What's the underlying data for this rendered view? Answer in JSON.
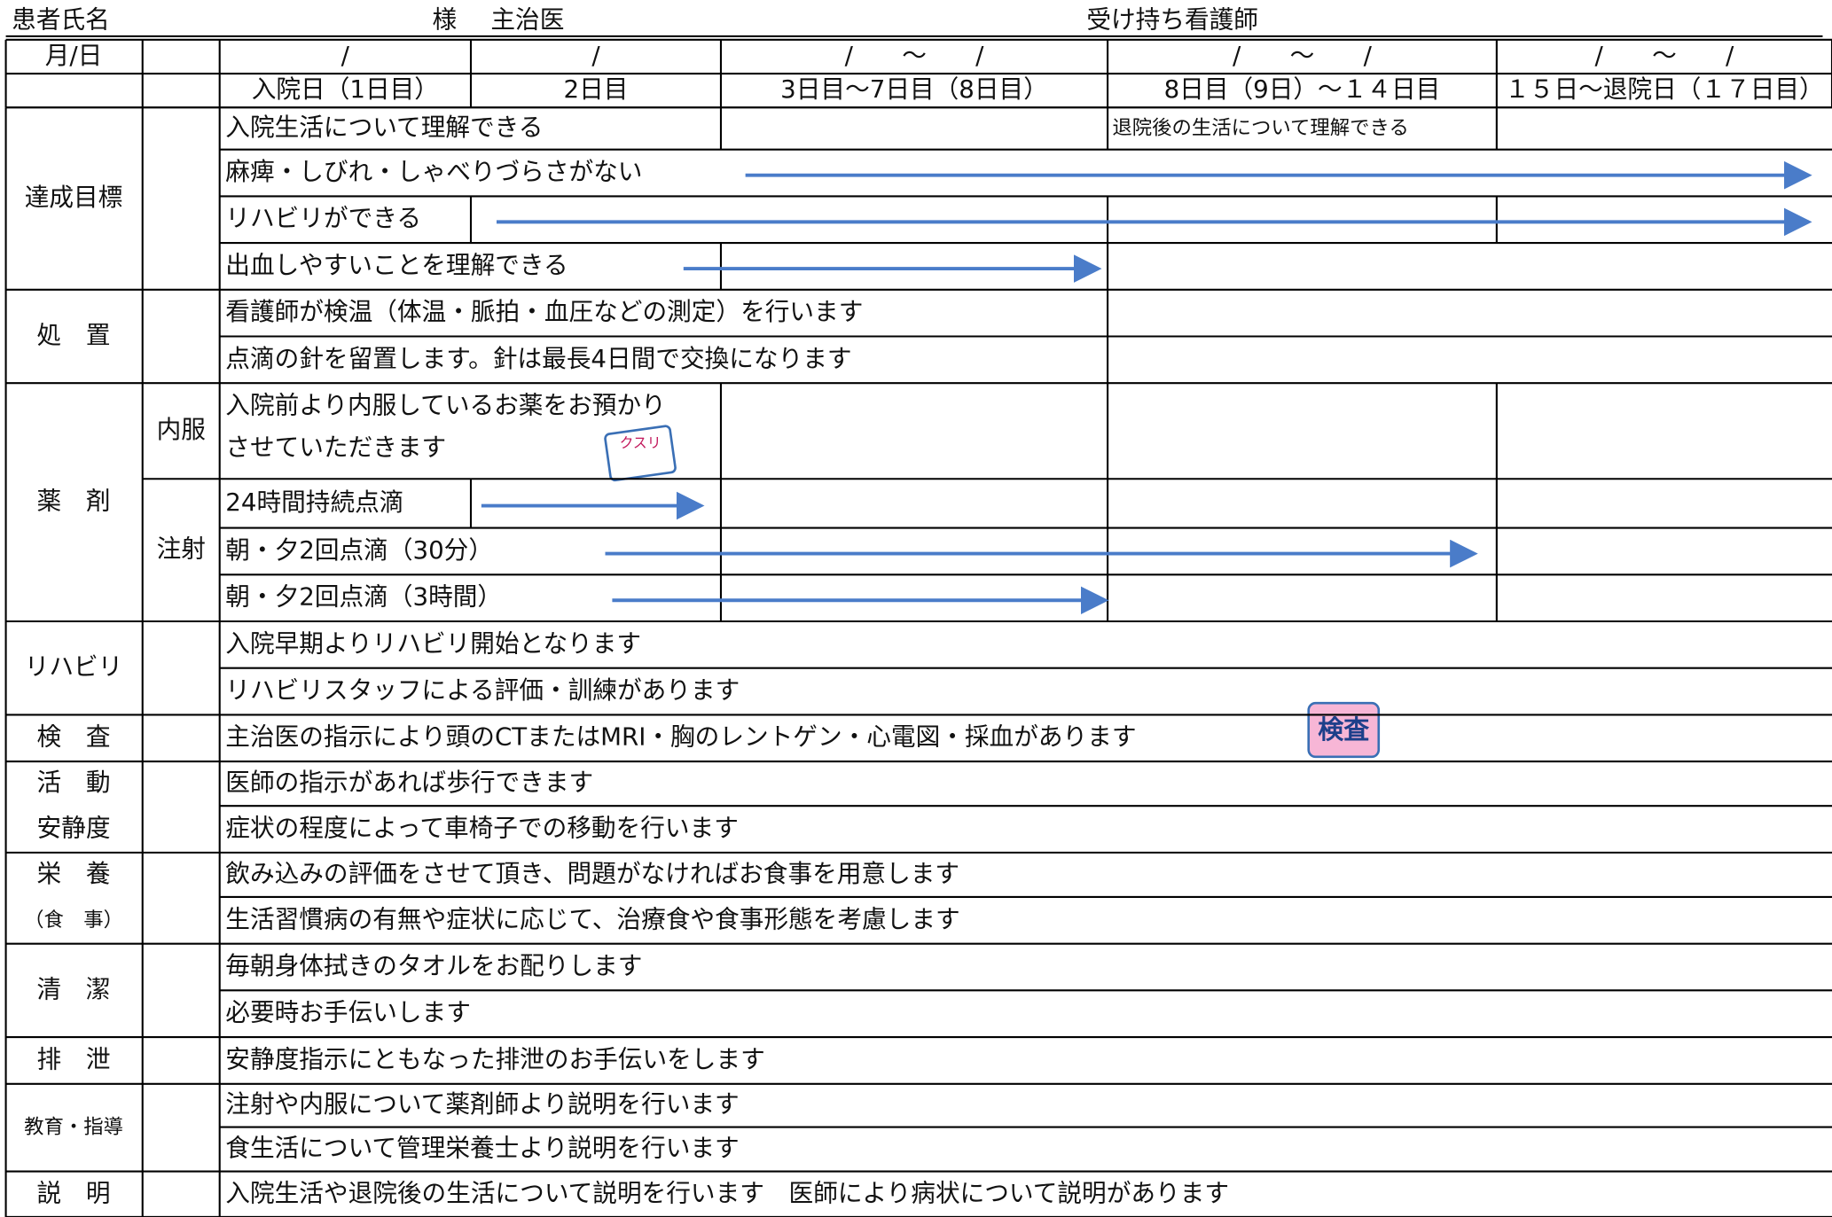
{
  "header": {
    "patient": "患者氏名",
    "sama": "様",
    "doctor": "主治医",
    "nurse": "受け持ち看護師"
  },
  "table": {
    "date_label": "月/日",
    "date_slots": [
      "/",
      "/",
      "/　　～　　/",
      "/　　～　　/",
      "/　　～　　/"
    ],
    "days": [
      "入院日（1日目）",
      "2日目",
      "3日目～7日目（8日目）",
      "8日目（9日）～１４日目",
      "１５日～退院日（１７日目）"
    ],
    "sections": [
      {
        "labels": [
          "達成目標"
        ],
        "rows": [
          [
            "入院生活について理解できる",
            "退院後の生活について理解できる"
          ],
          [
            "麻痺・しびれ・しゃべりづらさがない"
          ],
          [
            "リハビリができる"
          ],
          [
            "出血しやすいことを理解できる"
          ]
        ]
      },
      {
        "labels": [
          "処　置"
        ],
        "rows": [
          [
            "看護師が検温（体温・脈拍・血圧などの測定）を行います"
          ],
          [
            "点滴の針を留置します。針は最長4日間で交換になります"
          ]
        ]
      },
      {
        "labels": [
          "薬　剤"
        ],
        "sublabels": [
          "内服",
          "注射"
        ],
        "rows": [
          [
            "入院前より内服しているお薬をお預かり",
            "させていただきます"
          ],
          [
            "24時間持続点滴"
          ],
          [
            "朝・夕2回点滴（30分）"
          ],
          [
            "朝・夕2回点滴（3時間）"
          ]
        ]
      },
      {
        "labels": [
          "リハビリ"
        ],
        "rows": [
          [
            "入院早期よりリハビリ開始となります"
          ],
          [
            "リハビリスタッフによる評価・訓練があります"
          ]
        ]
      },
      {
        "labels": [
          "検　査"
        ],
        "rows": [
          [
            "主治医の指示により頭のCTまたはMRI・胸のレントゲン・心電図・採血があります"
          ]
        ]
      },
      {
        "labels": [
          "活　動",
          "安静度"
        ],
        "rows": [
          [
            "医師の指示があれば歩行できます"
          ],
          [
            "症状の程度によって車椅子での移動を行います"
          ]
        ]
      },
      {
        "labels": [
          "栄　養",
          "（食　事）"
        ],
        "rows": [
          [
            "飲み込みの評価をさせて頂き、問題がなければお食事を用意します"
          ],
          [
            "生活習慣病の有無や症状に応じて、治療食や食事形態を考慮します"
          ]
        ]
      },
      {
        "labels": [
          "清　潔"
        ],
        "rows": [
          [
            "毎朝身体拭きのタオルをお配りします"
          ],
          [
            "必要時お手伝いします"
          ]
        ]
      },
      {
        "labels": [
          "排　泄"
        ],
        "rows": [
          [
            "安静度指示にともなった排泄のお手伝いをします"
          ]
        ]
      },
      {
        "labels": [
          "教育・指導"
        ],
        "rows": [
          [
            "注射や内服について薬剤師より説明を行います"
          ],
          [
            "食生活について管理栄養士より説明を行います"
          ]
        ]
      },
      {
        "labels": [
          "説　明"
        ],
        "rows": [
          [
            "入院生活や退院後の生活について説明を行います　医師により病状について説明があります"
          ]
        ]
      }
    ],
    "icons": {
      "medicine": "クスリ",
      "exam": "検査"
    }
  }
}
